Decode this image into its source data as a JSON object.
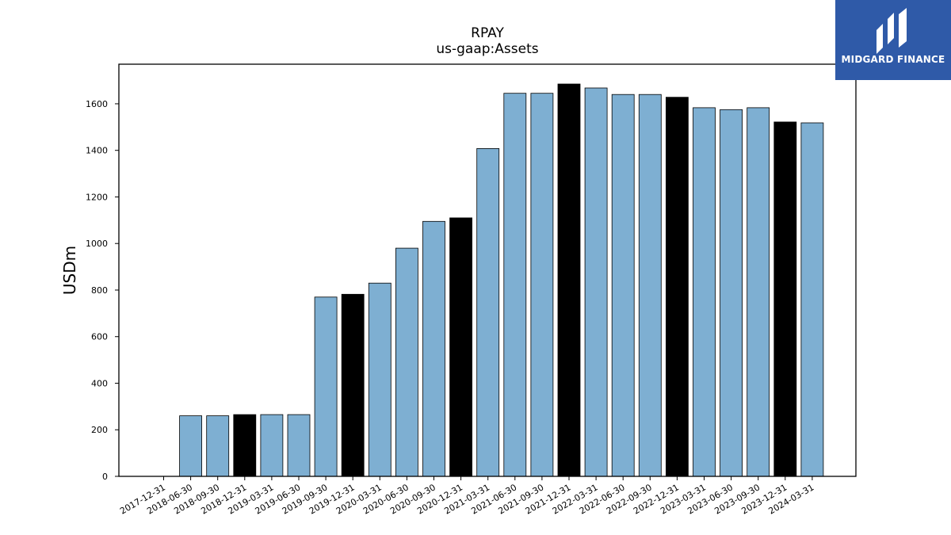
{
  "chart_data": {
    "type": "bar",
    "title": "RPAY",
    "subtitle": "us-gaap:Assets",
    "ylabel": "USDm",
    "xlabel": "",
    "ylim": [
      0,
      1770
    ],
    "yticks": [
      0,
      200,
      400,
      600,
      800,
      1000,
      1200,
      1400,
      1600
    ],
    "categories": [
      "2017-12-31",
      "2018-06-30",
      "2018-09-30",
      "2018-12-31",
      "2019-03-31",
      "2019-06-30",
      "2019-09-30",
      "2019-12-31",
      "2020-03-31",
      "2020-06-30",
      "2020-09-30",
      "2020-12-31",
      "2021-03-31",
      "2021-06-30",
      "2021-09-30",
      "2021-12-31",
      "2022-03-31",
      "2022-06-30",
      "2022-09-30",
      "2022-12-31",
      "2023-03-31",
      "2023-06-30",
      "2023-09-30",
      "2023-12-31",
      "2024-03-31"
    ],
    "values": [
      null,
      260,
      260,
      265,
      265,
      265,
      770,
      782,
      830,
      980,
      1095,
      1110,
      1408,
      1645,
      1645,
      1685,
      1668,
      1640,
      1640,
      1628,
      1583,
      1575,
      1583,
      1522,
      1518
    ],
    "bar_colors": [
      "#7eafd2",
      "#7eafd2",
      "#7eafd2",
      "#000000",
      "#7eafd2",
      "#7eafd2",
      "#7eafd2",
      "#000000",
      "#7eafd2",
      "#7eafd2",
      "#7eafd2",
      "#000000",
      "#7eafd2",
      "#7eafd2",
      "#7eafd2",
      "#000000",
      "#7eafd2",
      "#7eafd2",
      "#7eafd2",
      "#000000",
      "#7eafd2",
      "#7eafd2",
      "#7eafd2",
      "#000000",
      "#7eafd2"
    ],
    "grid": false,
    "legend": "none"
  },
  "logo": {
    "text": "MIDGARD FINANCE",
    "background": "#2f5aa8"
  }
}
